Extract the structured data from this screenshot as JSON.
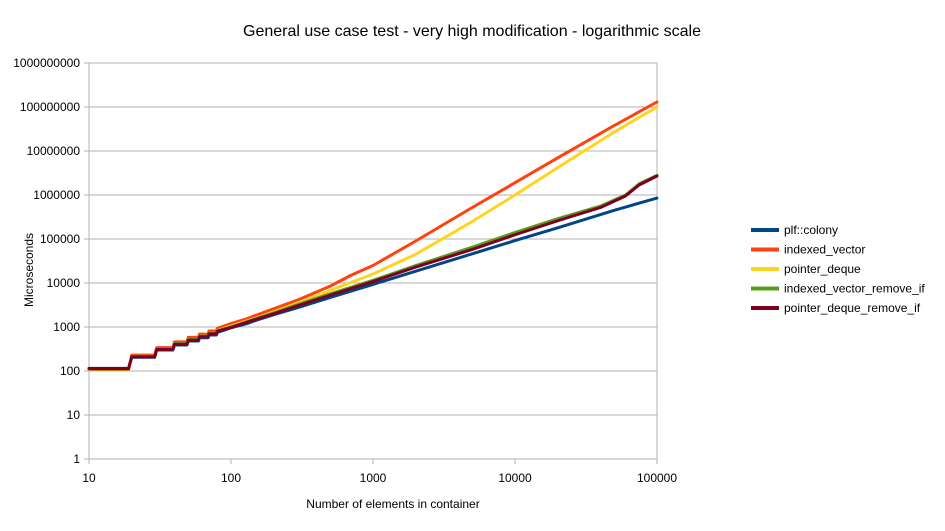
{
  "chart_data": {
    "type": "line",
    "title": "General use case test - very high modification - logarithmic scale",
    "xlabel": "Number of elements in container",
    "ylabel": "Microseconds",
    "x_scale": "log",
    "y_scale": "log",
    "xlim": [
      10,
      100000
    ],
    "ylim": [
      1,
      1000000000
    ],
    "x_ticks": [
      {
        "value": 10,
        "label": "10"
      },
      {
        "value": 100,
        "label": "100"
      },
      {
        "value": 1000,
        "label": "1000"
      },
      {
        "value": 10000,
        "label": "10000"
      },
      {
        "value": 100000,
        "label": "100000"
      }
    ],
    "y_ticks": [
      {
        "value": 1,
        "label": "1"
      },
      {
        "value": 10,
        "label": "10"
      },
      {
        "value": 100,
        "label": "100"
      },
      {
        "value": 1000,
        "label": "1000"
      },
      {
        "value": 10000,
        "label": "10000"
      },
      {
        "value": 100000,
        "label": "100000"
      },
      {
        "value": 1000000,
        "label": "1000000"
      },
      {
        "value": 10000000,
        "label": "10000000"
      },
      {
        "value": 100000000,
        "label": "100000000"
      },
      {
        "value": 1000000000,
        "label": "1000000000"
      }
    ],
    "grid": true,
    "legend_position": "right",
    "series": [
      {
        "name": "plf::colony",
        "color": "#004586",
        "points": [
          [
            10,
            115
          ],
          [
            19,
            115
          ],
          [
            20,
            205
          ],
          [
            29,
            205
          ],
          [
            30,
            300
          ],
          [
            39,
            300
          ],
          [
            40,
            390
          ],
          [
            49,
            390
          ],
          [
            50,
            480
          ],
          [
            59,
            480
          ],
          [
            60,
            570
          ],
          [
            69,
            570
          ],
          [
            70,
            660
          ],
          [
            79,
            660
          ],
          [
            80,
            750
          ],
          [
            100,
            960
          ],
          [
            130,
            1200
          ],
          [
            150,
            1420
          ],
          [
            200,
            1900
          ],
          [
            300,
            2800
          ],
          [
            500,
            4700
          ],
          [
            1000,
            9300
          ],
          [
            2000,
            18600
          ],
          [
            5000,
            46000
          ],
          [
            10000,
            92000
          ],
          [
            20000,
            180000
          ],
          [
            50000,
            450000
          ],
          [
            100000,
            850000
          ]
        ]
      },
      {
        "name": "indexed_vector",
        "color": "#ff420e",
        "points": [
          [
            10,
            108
          ],
          [
            19,
            108
          ],
          [
            20,
            230
          ],
          [
            29,
            230
          ],
          [
            30,
            340
          ],
          [
            39,
            340
          ],
          [
            40,
            460
          ],
          [
            49,
            460
          ],
          [
            50,
            580
          ],
          [
            59,
            580
          ],
          [
            60,
            690
          ],
          [
            69,
            690
          ],
          [
            70,
            810
          ],
          [
            79,
            810
          ],
          [
            80,
            930
          ],
          [
            100,
            1200
          ],
          [
            130,
            1550
          ],
          [
            150,
            1850
          ],
          [
            200,
            2600
          ],
          [
            300,
            4200
          ],
          [
            500,
            8500
          ],
          [
            700,
            15000
          ],
          [
            1000,
            25000
          ],
          [
            2000,
            90000
          ],
          [
            5000,
            520000
          ],
          [
            10000,
            1900000
          ],
          [
            20000,
            7000000
          ],
          [
            50000,
            38000000
          ],
          [
            100000,
            130000000
          ]
        ]
      },
      {
        "name": "pointer_deque",
        "color": "#ffd320",
        "points": [
          [
            10,
            110
          ],
          [
            19,
            110
          ],
          [
            20,
            215
          ],
          [
            29,
            215
          ],
          [
            30,
            320
          ],
          [
            39,
            320
          ],
          [
            40,
            420
          ],
          [
            49,
            420
          ],
          [
            50,
            520
          ],
          [
            59,
            520
          ],
          [
            60,
            620
          ],
          [
            69,
            620
          ],
          [
            70,
            720
          ],
          [
            79,
            720
          ],
          [
            80,
            830
          ],
          [
            100,
            1050
          ],
          [
            150,
            1600
          ],
          [
            200,
            2200
          ],
          [
            300,
            3600
          ],
          [
            500,
            6800
          ],
          [
            1000,
            16000
          ],
          [
            2000,
            45000
          ],
          [
            5000,
            250000
          ],
          [
            10000,
            1000000
          ],
          [
            20000,
            4200000
          ],
          [
            50000,
            27000000
          ],
          [
            100000,
            100000000
          ]
        ]
      },
      {
        "name": "indexed_vector_remove_if",
        "color": "#579d1c",
        "points": [
          [
            10,
            112
          ],
          [
            19,
            112
          ],
          [
            20,
            215
          ],
          [
            29,
            215
          ],
          [
            30,
            320
          ],
          [
            39,
            320
          ],
          [
            40,
            420
          ],
          [
            49,
            420
          ],
          [
            50,
            520
          ],
          [
            59,
            520
          ],
          [
            60,
            620
          ],
          [
            69,
            620
          ],
          [
            70,
            720
          ],
          [
            79,
            720
          ],
          [
            80,
            820
          ],
          [
            100,
            1000
          ],
          [
            150,
            1550
          ],
          [
            200,
            2100
          ],
          [
            300,
            3300
          ],
          [
            500,
            5700
          ],
          [
            1000,
            11500
          ],
          [
            2000,
            25000
          ],
          [
            5000,
            65000
          ],
          [
            10000,
            140000
          ],
          [
            20000,
            290000
          ],
          [
            40000,
            560000
          ],
          [
            60000,
            1000000
          ],
          [
            75000,
            1800000
          ],
          [
            100000,
            2800000
          ]
        ]
      },
      {
        "name": "pointer_deque_remove_if",
        "color": "#7e0021",
        "points": [
          [
            10,
            114
          ],
          [
            19,
            114
          ],
          [
            20,
            210
          ],
          [
            29,
            210
          ],
          [
            30,
            310
          ],
          [
            39,
            310
          ],
          [
            40,
            405
          ],
          [
            49,
            405
          ],
          [
            50,
            500
          ],
          [
            59,
            500
          ],
          [
            60,
            600
          ],
          [
            69,
            600
          ],
          [
            70,
            700
          ],
          [
            79,
            700
          ],
          [
            80,
            800
          ],
          [
            100,
            980
          ],
          [
            150,
            1500
          ],
          [
            200,
            2000
          ],
          [
            300,
            3100
          ],
          [
            500,
            5300
          ],
          [
            1000,
            10800
          ],
          [
            2000,
            23000
          ],
          [
            5000,
            58000
          ],
          [
            10000,
            125000
          ],
          [
            20000,
            260000
          ],
          [
            40000,
            520000
          ],
          [
            60000,
            950000
          ],
          [
            75000,
            1700000
          ],
          [
            100000,
            2700000
          ]
        ]
      }
    ]
  }
}
